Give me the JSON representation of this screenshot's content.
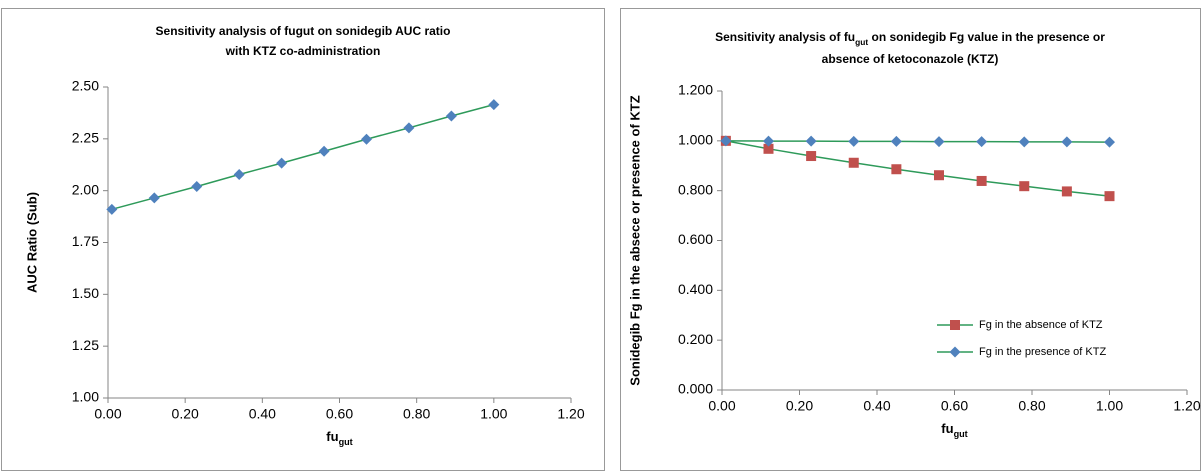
{
  "chart_data": [
    {
      "type": "line",
      "title": [
        [
          "Sensitivity analysis of fugut on sonidegib AUC ratio"
        ],
        [
          "with KTZ co-administration"
        ]
      ],
      "xlabel": [
        "fu",
        "gut"
      ],
      "ylabel": "AUC Ratio (Sub)",
      "x": [
        0.01,
        0.12,
        0.23,
        0.34,
        0.45,
        0.56,
        0.67,
        0.78,
        0.89,
        1.0
      ],
      "values": [
        1.91,
        1.965,
        2.02,
        2.078,
        2.133,
        2.19,
        2.248,
        2.303,
        2.36,
        2.415
      ],
      "color": "#4f81bd",
      "line_color": "#2e9a5a",
      "marker": "diamond",
      "xlim": [
        0,
        1.2
      ],
      "xticks": [
        {
          "value": 0,
          "label": "0.00"
        },
        {
          "value": 0.2,
          "label": "0.20"
        },
        {
          "value": 0.4,
          "label": "0.40"
        },
        {
          "value": 0.6,
          "label": "0.60"
        },
        {
          "value": 0.8,
          "label": "0.80"
        },
        {
          "value": 1.0,
          "label": "1.00"
        },
        {
          "value": 1.2,
          "label": "1.20"
        }
      ],
      "ylim": [
        1,
        2.5
      ],
      "yticks": [
        {
          "value": 1,
          "label": "1.00"
        },
        {
          "value": 1.25,
          "label": "1.25"
        },
        {
          "value": 1.5,
          "label": "1.50"
        },
        {
          "value": 1.75,
          "label": "1.75"
        },
        {
          "value": 2,
          "label": "2.00"
        },
        {
          "value": 2.25,
          "label": "2.25"
        },
        {
          "value": 2.5,
          "label": "2.50"
        }
      ],
      "grid": false
    },
    {
      "type": "line",
      "title": [
        [
          "Sensitivity analysis of fu",
          "gut",
          " on sonidegib Fg value in the presence or"
        ],
        [
          "absence of ketoconazole (KTZ)"
        ]
      ],
      "xlabel": [
        "fu",
        "gut"
      ],
      "ylabel": "Sonidegib Fg in the absece or presence of KTZ",
      "x": [
        0.01,
        0.12,
        0.23,
        0.34,
        0.45,
        0.56,
        0.67,
        0.78,
        0.89,
        1.0
      ],
      "series": [
        {
          "name": "Fg in the absence of KTZ",
          "color": "#c0504d",
          "line_color": "#2e9a5a",
          "marker": "square",
          "values": [
            1.0,
            0.968,
            0.939,
            0.912,
            0.886,
            0.862,
            0.839,
            0.818,
            0.797,
            0.778
          ]
        },
        {
          "name": "Fg in the presence of KTZ",
          "color": "#4f81bd",
          "line_color": "#2e9a5a",
          "marker": "diamond",
          "values": [
            1.0,
            0.999,
            0.999,
            0.998,
            0.998,
            0.997,
            0.997,
            0.996,
            0.996,
            0.995
          ]
        }
      ],
      "xlim": [
        0,
        1.2
      ],
      "xticks": [
        {
          "value": 0,
          "label": "0.00"
        },
        {
          "value": 0.2,
          "label": "0.20"
        },
        {
          "value": 0.4,
          "label": "0.40"
        },
        {
          "value": 0.6,
          "label": "0.60"
        },
        {
          "value": 0.8,
          "label": "0.80"
        },
        {
          "value": 1.0,
          "label": "1.00"
        },
        {
          "value": 1.2,
          "label": "1.20"
        }
      ],
      "ylim": [
        0,
        1.2
      ],
      "yticks": [
        {
          "value": 0,
          "label": "0.000"
        },
        {
          "value": 0.2,
          "label": "0.200"
        },
        {
          "value": 0.4,
          "label": "0.400"
        },
        {
          "value": 0.6,
          "label": "0.600"
        },
        {
          "value": 0.8,
          "label": "0.800"
        },
        {
          "value": 1.0,
          "label": "1.000"
        },
        {
          "value": 1.2,
          "label": "1.200"
        }
      ],
      "grid": false,
      "legend": "lower right"
    }
  ]
}
